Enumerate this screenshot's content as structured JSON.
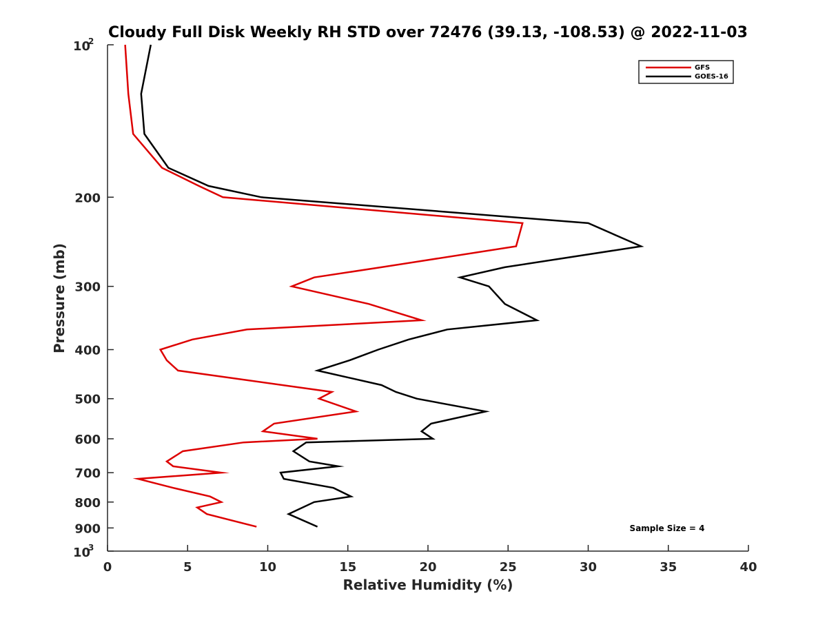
{
  "chart_data": {
    "type": "line",
    "title": "Cloudy Full Disk Weekly RH STD over 72476 (39.13, -108.53) @ 2022-11-03",
    "xlabel": "Relative Humidity (%)",
    "ylabel": "Pressure (mb)",
    "xlim": [
      0,
      40
    ],
    "ylim": [
      100,
      1000
    ],
    "y_scale": "log",
    "y_reversed": true,
    "x_ticks": [
      0,
      5,
      10,
      15,
      20,
      25,
      30,
      35,
      40
    ],
    "y_ticks": [
      {
        "value": 100,
        "base": "10",
        "exp": "2"
      },
      {
        "value": 200,
        "label": "200"
      },
      {
        "value": 300,
        "label": "300"
      },
      {
        "value": 400,
        "label": "400"
      },
      {
        "value": 500,
        "label": "500"
      },
      {
        "value": 600,
        "label": "600"
      },
      {
        "value": 700,
        "label": "700"
      },
      {
        "value": 800,
        "label": "800"
      },
      {
        "value": 900,
        "label": "900"
      },
      {
        "value": 1000,
        "base": "10",
        "exp": "3"
      }
    ],
    "grid": false,
    "legend_position": "top-right",
    "annotation": "Sample Size = 4",
    "series": [
      {
        "name": "GFS",
        "color": "#dd0000",
        "points": [
          [
            1.1,
            100
          ],
          [
            1.3,
            125
          ],
          [
            1.6,
            150
          ],
          [
            3.4,
            175
          ],
          [
            5.7,
            190
          ],
          [
            7.2,
            200
          ],
          [
            25.9,
            225
          ],
          [
            25.5,
            250
          ],
          [
            17.1,
            275
          ],
          [
            12.9,
            288
          ],
          [
            11.5,
            300
          ],
          [
            16.3,
            325
          ],
          [
            19.6,
            350
          ],
          [
            8.7,
            365
          ],
          [
            5.3,
            382
          ],
          [
            3.3,
            400
          ],
          [
            3.7,
            420
          ],
          [
            4.4,
            440
          ],
          [
            14.0,
            485
          ],
          [
            13.2,
            500
          ],
          [
            15.5,
            530
          ],
          [
            10.4,
            560
          ],
          [
            9.7,
            580
          ],
          [
            13.1,
            600
          ],
          [
            8.5,
            610
          ],
          [
            4.7,
            635
          ],
          [
            3.7,
            665
          ],
          [
            4.1,
            680
          ],
          [
            7.1,
            700
          ],
          [
            1.9,
            720
          ],
          [
            4.1,
            750
          ],
          [
            6.4,
            780
          ],
          [
            7.1,
            800
          ],
          [
            5.6,
            820
          ],
          [
            6.2,
            845
          ],
          [
            9.3,
            895
          ]
        ]
      },
      {
        "name": "GOES-16",
        "color": "#000000",
        "points": [
          [
            2.7,
            100
          ],
          [
            2.1,
            125
          ],
          [
            2.3,
            150
          ],
          [
            3.8,
            175
          ],
          [
            6.3,
            190
          ],
          [
            9.6,
            200
          ],
          [
            30.0,
            225
          ],
          [
            33.3,
            250
          ],
          [
            24.8,
            275
          ],
          [
            22.0,
            288
          ],
          [
            23.8,
            300
          ],
          [
            24.8,
            325
          ],
          [
            26.8,
            350
          ],
          [
            21.2,
            365
          ],
          [
            18.8,
            382
          ],
          [
            16.9,
            400
          ],
          [
            15.1,
            420
          ],
          [
            13.1,
            440
          ],
          [
            17.1,
            470
          ],
          [
            18.0,
            485
          ],
          [
            19.3,
            500
          ],
          [
            23.6,
            530
          ],
          [
            20.2,
            560
          ],
          [
            19.6,
            580
          ],
          [
            20.3,
            600
          ],
          [
            12.4,
            610
          ],
          [
            11.6,
            635
          ],
          [
            12.6,
            665
          ],
          [
            14.4,
            680
          ],
          [
            10.8,
            700
          ],
          [
            11.0,
            720
          ],
          [
            14.1,
            750
          ],
          [
            15.2,
            780
          ],
          [
            12.9,
            800
          ],
          [
            11.3,
            845
          ],
          [
            13.1,
            895
          ]
        ]
      }
    ]
  }
}
